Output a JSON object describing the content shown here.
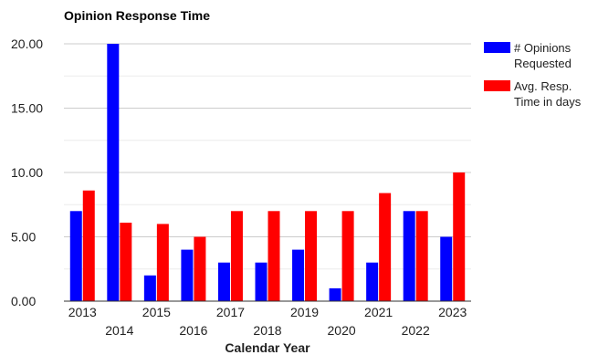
{
  "chart_data": {
    "type": "bar",
    "title": "Opinion Response Time",
    "xlabel": "Calendar Year",
    "ylabel": "",
    "categories": [
      "2013",
      "2014",
      "2015",
      "2016",
      "2017",
      "2018",
      "2019",
      "2020",
      "2021",
      "2022",
      "2023"
    ],
    "series": [
      {
        "name_lines": [
          "# Opinions",
          "Requested"
        ],
        "color": "#0000ff",
        "values": [
          7,
          20,
          2,
          4,
          3,
          3,
          4,
          1,
          3,
          7,
          5
        ]
      },
      {
        "name_lines": [
          "Avg. Resp.",
          "Time in days"
        ],
        "color": "#ff0000",
        "values": [
          8.6,
          6.1,
          6,
          5,
          7,
          7,
          7,
          7,
          8.4,
          7,
          10
        ]
      }
    ],
    "ylim": [
      0,
      20
    ],
    "yticks": [
      "0.00",
      "5.00",
      "10.00",
      "15.00",
      "20.00"
    ],
    "ytick_values": [
      0,
      5,
      10,
      15,
      20
    ],
    "minor_gridlines": [
      2.5,
      7.5,
      12.5,
      17.5
    ],
    "grid": true,
    "legend_position": "right"
  }
}
